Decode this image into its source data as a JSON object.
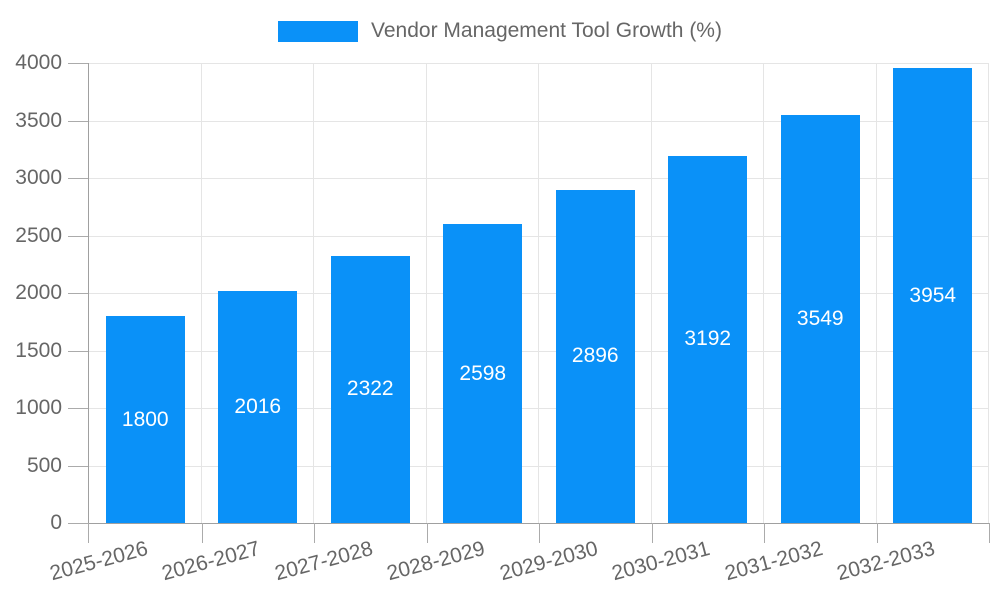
{
  "chart_data": {
    "type": "bar",
    "title": "Vendor Management Tool Growth (%)",
    "legend": {
      "position": "top",
      "label": "Vendor Management Tool Growth (%)"
    },
    "categories": [
      "2025-2026",
      "2026-2027",
      "2027-2028",
      "2028-2029",
      "2029-2030",
      "2030-2031",
      "2031-2032",
      "2032-2033"
    ],
    "values": [
      1800,
      2016,
      2322,
      2598,
      2896,
      3192,
      3549,
      3954
    ],
    "xlabel": "",
    "ylabel": "",
    "ylim": [
      0,
      4000
    ],
    "yticks": [
      0,
      500,
      1000,
      1500,
      2000,
      2500,
      3000,
      3500,
      4000
    ],
    "grid": true,
    "bar_labels_inside": true,
    "colors": {
      "bar": "#0a91f8",
      "bar_value_text": "#ffffff",
      "tick_text": "#666666",
      "legend_text": "#666666",
      "gridline": "#e5e5e5",
      "axis_line": "#a0a0a0",
      "background": "#ffffff"
    }
  }
}
